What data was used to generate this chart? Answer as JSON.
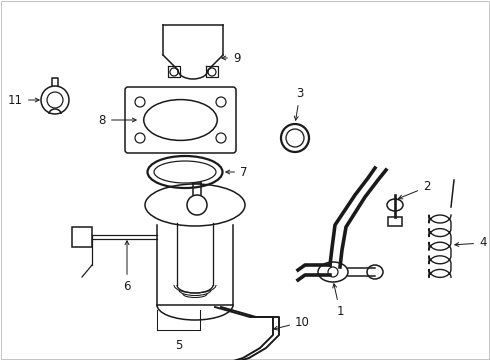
{
  "bg_color": "#ffffff",
  "lc": "#1a1a1a",
  "figsize": [
    4.9,
    3.6
  ],
  "dpi": 100,
  "fs": 8.5,
  "lw": 1.1
}
